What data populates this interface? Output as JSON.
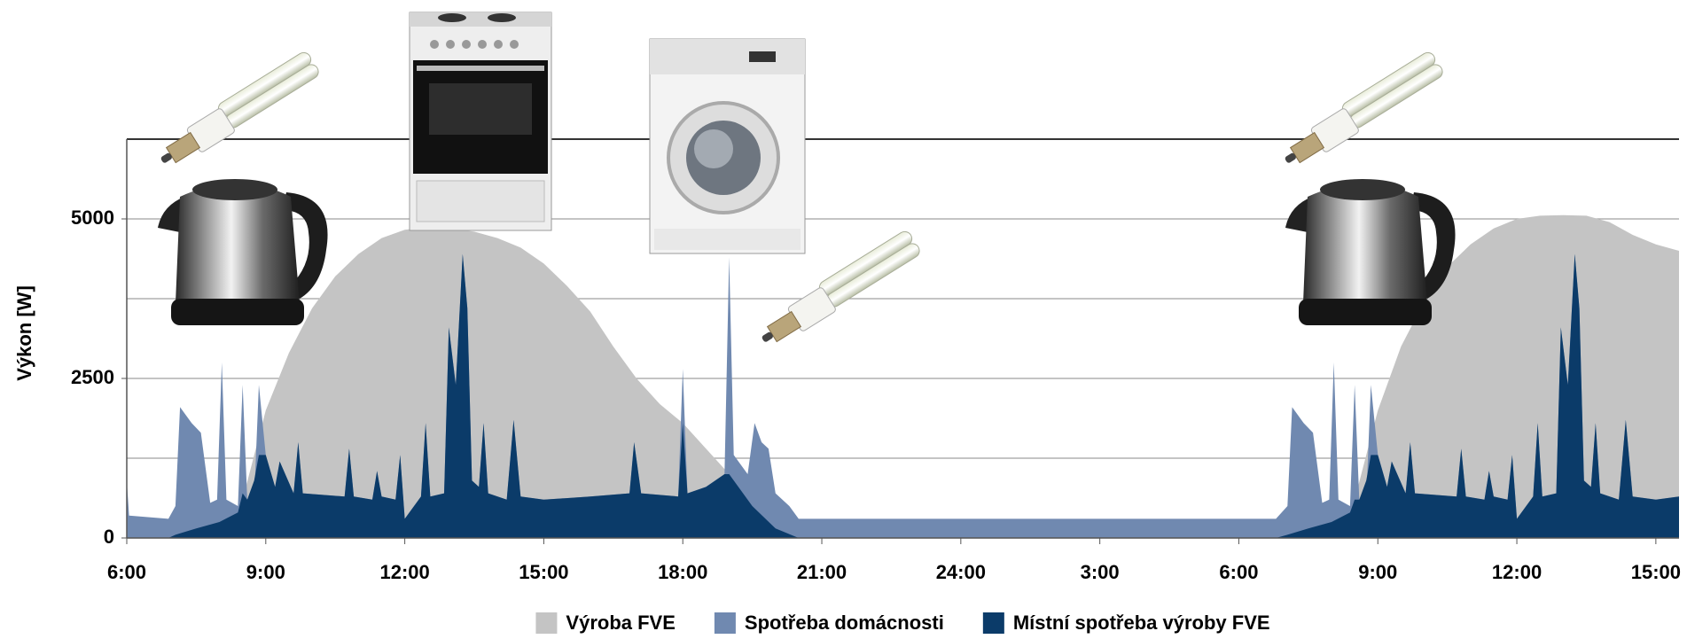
{
  "chart_data": {
    "type": "area",
    "ylabel": "Výkon [W]",
    "xlim": [
      6,
      39.5
    ],
    "xticks": [
      {
        "value": 6,
        "label": "6:00"
      },
      {
        "value": 9,
        "label": "9:00"
      },
      {
        "value": 12,
        "label": "12:00"
      },
      {
        "value": 15,
        "label": "15:00"
      },
      {
        "value": 18,
        "label": "18:00"
      },
      {
        "value": 21,
        "label": "21:00"
      },
      {
        "value": 24,
        "label": "24:00"
      },
      {
        "value": 27,
        "label": "3:00"
      },
      {
        "value": 30,
        "label": "6:00"
      },
      {
        "value": 33,
        "label": "9:00"
      },
      {
        "value": 36,
        "label": "12:00"
      },
      {
        "value": 39,
        "label": "15:00"
      }
    ],
    "ylim": [
      0,
      6250
    ],
    "yticks": [
      0,
      2500,
      5000
    ],
    "ygrid": [
      0,
      1250,
      2500,
      3750,
      5000,
      6250
    ],
    "grid": true,
    "legend": "bottom",
    "series": [
      {
        "name": "Výroba FVE",
        "color": "#c4c4c4",
        "x": [
          6.0,
          8.0,
          8.5,
          9.0,
          9.5,
          10.0,
          10.5,
          11.0,
          11.5,
          12.0,
          12.5,
          13.0,
          13.5,
          14.0,
          14.5,
          15.0,
          15.5,
          16.0,
          16.5,
          17.0,
          17.5,
          18.0,
          18.5,
          19.0,
          19.5,
          20.0,
          20.5,
          32.0,
          32.5,
          33.0,
          33.5,
          34.0,
          34.5,
          35.0,
          35.5,
          36.0,
          36.5,
          37.0,
          37.5,
          38.0,
          38.5,
          39.0,
          39.5
        ],
        "values": [
          0,
          0,
          600,
          2000,
          2900,
          3600,
          4100,
          4450,
          4700,
          4830,
          4870,
          4850,
          4800,
          4700,
          4550,
          4300,
          3950,
          3550,
          3000,
          2500,
          2100,
          1800,
          1400,
          1000,
          500,
          150,
          0,
          0,
          600,
          2000,
          3000,
          3700,
          4250,
          4600,
          4850,
          5000,
          5050,
          5060,
          5050,
          4950,
          4750,
          4600,
          4500
        ]
      },
      {
        "name": "Spotřeba domácnosti",
        "color": "#7089b0",
        "x": [
          6.0,
          6.05,
          6.9,
          7.05,
          7.15,
          7.4,
          7.6,
          7.8,
          7.95,
          8.05,
          8.15,
          8.4,
          8.5,
          8.6,
          8.75,
          8.85,
          9.0,
          9.2,
          9.3,
          9.6,
          9.7,
          9.8,
          10.7,
          10.8,
          10.9,
          11.3,
          11.4,
          11.5,
          11.8,
          11.9,
          12.0,
          12.35,
          12.45,
          12.55,
          12.85,
          12.95,
          13.1,
          13.25,
          13.35,
          13.45,
          13.6,
          13.7,
          13.8,
          14.2,
          14.35,
          14.5,
          15.0,
          16.0,
          16.85,
          16.95,
          17.1,
          17.9,
          18.0,
          18.1,
          18.5,
          18.9,
          19.0,
          19.1,
          19.4,
          19.55,
          19.7,
          19.85,
          20.0,
          20.3,
          20.5,
          30.8,
          31.05,
          31.15,
          31.4,
          31.6,
          31.8,
          31.95,
          32.05,
          32.15,
          32.4,
          32.5,
          32.6,
          32.75,
          32.85,
          33.0,
          33.2,
          33.3,
          33.6,
          33.7,
          33.8,
          34.7,
          34.8,
          34.9,
          35.3,
          35.4,
          35.5,
          35.8,
          35.9,
          36.0,
          36.35,
          36.45,
          36.55,
          36.85,
          36.95,
          37.1,
          37.25,
          37.35,
          37.45,
          37.6,
          37.7,
          37.8,
          38.2,
          38.35,
          38.5,
          39.0,
          39.5
        ],
        "values": [
          900,
          350,
          300,
          500,
          2050,
          1800,
          1650,
          550,
          600,
          2750,
          600,
          500,
          2400,
          600,
          600,
          2400,
          1300,
          800,
          1200,
          700,
          1500,
          700,
          650,
          1400,
          650,
          600,
          1050,
          650,
          600,
          1300,
          300,
          650,
          1800,
          650,
          700,
          3300,
          2400,
          4450,
          3600,
          900,
          800,
          1800,
          700,
          600,
          1850,
          650,
          600,
          650,
          700,
          1500,
          700,
          650,
          2650,
          700,
          800,
          1000,
          4400,
          1300,
          1000,
          1800,
          1500,
          1400,
          700,
          500,
          300,
          300,
          500,
          2050,
          1800,
          1650,
          550,
          600,
          2750,
          600,
          500,
          2400,
          600,
          600,
          2400,
          1300,
          800,
          1200,
          700,
          1500,
          700,
          650,
          1400,
          650,
          600,
          1050,
          650,
          600,
          1300,
          300,
          650,
          1800,
          650,
          700,
          3300,
          2400,
          4450,
          3600,
          900,
          800,
          1800,
          700,
          600,
          1850,
          650,
          600,
          650
        ]
      },
      {
        "name": "Místní spotřeba výroby FVE",
        "color": "#0b3b69",
        "x": [
          6.0,
          6.9,
          7.05,
          7.5,
          8.0,
          8.4,
          8.5,
          8.6,
          8.75,
          8.85,
          9.0,
          9.2,
          9.3,
          9.6,
          9.7,
          9.8,
          10.7,
          10.8,
          10.9,
          11.3,
          11.4,
          11.5,
          11.8,
          11.9,
          12.0,
          12.35,
          12.45,
          12.55,
          12.85,
          12.95,
          13.1,
          13.25,
          13.35,
          13.45,
          13.6,
          13.7,
          13.8,
          14.2,
          14.35,
          14.5,
          15.0,
          16.0,
          16.85,
          16.95,
          17.1,
          17.9,
          18.0,
          18.1,
          18.5,
          18.9,
          19.0,
          19.5,
          20.0,
          20.5,
          30.8,
          31.05,
          31.5,
          32.0,
          32.4,
          32.5,
          32.6,
          32.75,
          32.85,
          33.0,
          33.2,
          33.3,
          33.6,
          33.7,
          33.8,
          34.7,
          34.8,
          34.9,
          35.3,
          35.4,
          35.5,
          35.8,
          35.9,
          36.0,
          36.35,
          36.45,
          36.55,
          36.85,
          36.95,
          37.1,
          37.25,
          37.35,
          37.45,
          37.6,
          37.7,
          37.8,
          38.2,
          38.35,
          38.5,
          39.0,
          39.5
        ],
        "values": [
          0,
          0,
          50,
          150,
          250,
          400,
          700,
          600,
          900,
          1300,
          1300,
          800,
          1200,
          700,
          1500,
          700,
          650,
          1400,
          650,
          600,
          1050,
          650,
          600,
          1300,
          300,
          650,
          1800,
          650,
          700,
          3300,
          2400,
          4450,
          3600,
          900,
          800,
          1800,
          700,
          600,
          1850,
          650,
          600,
          650,
          700,
          1500,
          700,
          650,
          1800,
          700,
          800,
          1000,
          1000,
          500,
          150,
          0,
          0,
          50,
          150,
          250,
          400,
          600,
          600,
          900,
          1300,
          1300,
          800,
          1200,
          700,
          1500,
          700,
          650,
          1400,
          650,
          600,
          1050,
          650,
          600,
          1300,
          300,
          650,
          1800,
          650,
          700,
          3300,
          2400,
          4450,
          3600,
          900,
          800,
          1800,
          700,
          600,
          1850,
          650,
          600,
          650
        ]
      }
    ]
  }
}
